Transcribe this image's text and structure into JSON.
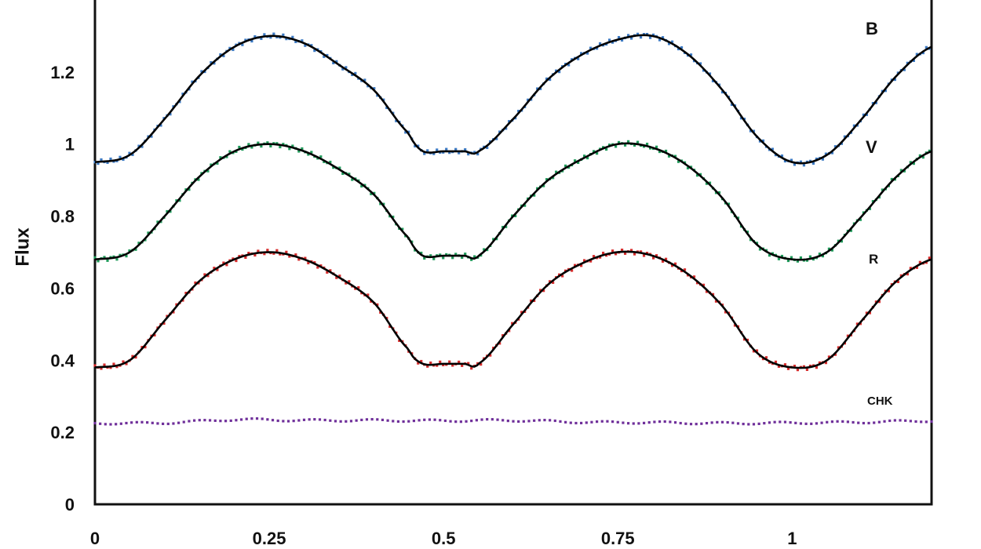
{
  "chart_data": {
    "type": "line",
    "title": "",
    "xlabel": "",
    "ylabel": "Flux",
    "xlim": [
      0,
      1.2
    ],
    "ylim": [
      0,
      1.4
    ],
    "x_ticks": [
      "0",
      "0.25",
      "0.5",
      "0.75",
      "1"
    ],
    "x_tick_values": [
      0,
      0.25,
      0.5,
      0.75,
      1
    ],
    "y_ticks": [
      "0",
      "0.2",
      "0.4",
      "0.6",
      "0.8",
      "1",
      "1.2"
    ],
    "y_tick_values": [
      0,
      0.2,
      0.4,
      0.6,
      0.8,
      1.0,
      1.2
    ],
    "grid": false,
    "series": [
      {
        "name": "B",
        "model_color": "#000000",
        "point_color": "#3a78c2",
        "x": [
          0,
          0.05,
          0.1,
          0.15,
          0.2,
          0.25,
          0.3,
          0.35,
          0.4,
          0.45,
          0.47,
          0.5,
          0.53,
          0.55,
          0.6,
          0.65,
          0.7,
          0.75,
          0.8,
          0.85,
          0.9,
          0.95,
          1.0,
          1.05,
          1.1,
          1.15,
          1.2
        ],
        "y": [
          0.95,
          0.97,
          1.07,
          1.19,
          1.27,
          1.3,
          1.28,
          1.22,
          1.15,
          1.03,
          0.98,
          0.98,
          0.98,
          0.98,
          1.07,
          1.18,
          1.25,
          1.29,
          1.3,
          1.25,
          1.15,
          1.02,
          0.95,
          0.97,
          1.07,
          1.19,
          1.27
        ]
      },
      {
        "name": "V",
        "model_color": "#000000",
        "point_color": "#1f9a5a",
        "x": [
          0,
          0.05,
          0.1,
          0.15,
          0.2,
          0.25,
          0.3,
          0.35,
          0.4,
          0.45,
          0.47,
          0.5,
          0.53,
          0.55,
          0.6,
          0.65,
          0.7,
          0.75,
          0.8,
          0.85,
          0.9,
          0.95,
          1.0,
          1.05,
          1.1,
          1.15,
          1.2
        ],
        "y": [
          0.68,
          0.7,
          0.8,
          0.91,
          0.98,
          1.0,
          0.98,
          0.93,
          0.86,
          0.74,
          0.69,
          0.69,
          0.69,
          0.69,
          0.8,
          0.9,
          0.96,
          1.0,
          0.99,
          0.94,
          0.85,
          0.72,
          0.68,
          0.7,
          0.8,
          0.91,
          0.98
        ]
      },
      {
        "name": "R",
        "model_color": "#000000",
        "point_color": "#d62b2b",
        "x": [
          0,
          0.05,
          0.1,
          0.15,
          0.2,
          0.25,
          0.3,
          0.35,
          0.4,
          0.45,
          0.47,
          0.5,
          0.53,
          0.55,
          0.6,
          0.65,
          0.7,
          0.75,
          0.8,
          0.85,
          0.9,
          0.95,
          1.0,
          1.05,
          1.1,
          1.15,
          1.2
        ],
        "y": [
          0.38,
          0.4,
          0.51,
          0.62,
          0.68,
          0.7,
          0.68,
          0.63,
          0.56,
          0.43,
          0.39,
          0.39,
          0.39,
          0.39,
          0.5,
          0.61,
          0.67,
          0.7,
          0.69,
          0.64,
          0.55,
          0.42,
          0.38,
          0.4,
          0.51,
          0.62,
          0.68
        ]
      },
      {
        "name": "CHK",
        "point_color": "#6f2f9a",
        "x": [
          0,
          0.1,
          0.2,
          0.3,
          0.4,
          0.5,
          0.6,
          0.7,
          0.8,
          0.9,
          1.0,
          1.1,
          1.2
        ],
        "y": [
          0.225,
          0.226,
          0.235,
          0.233,
          0.233,
          0.232,
          0.233,
          0.228,
          0.227,
          0.225,
          0.226,
          0.228,
          0.232
        ]
      }
    ]
  }
}
